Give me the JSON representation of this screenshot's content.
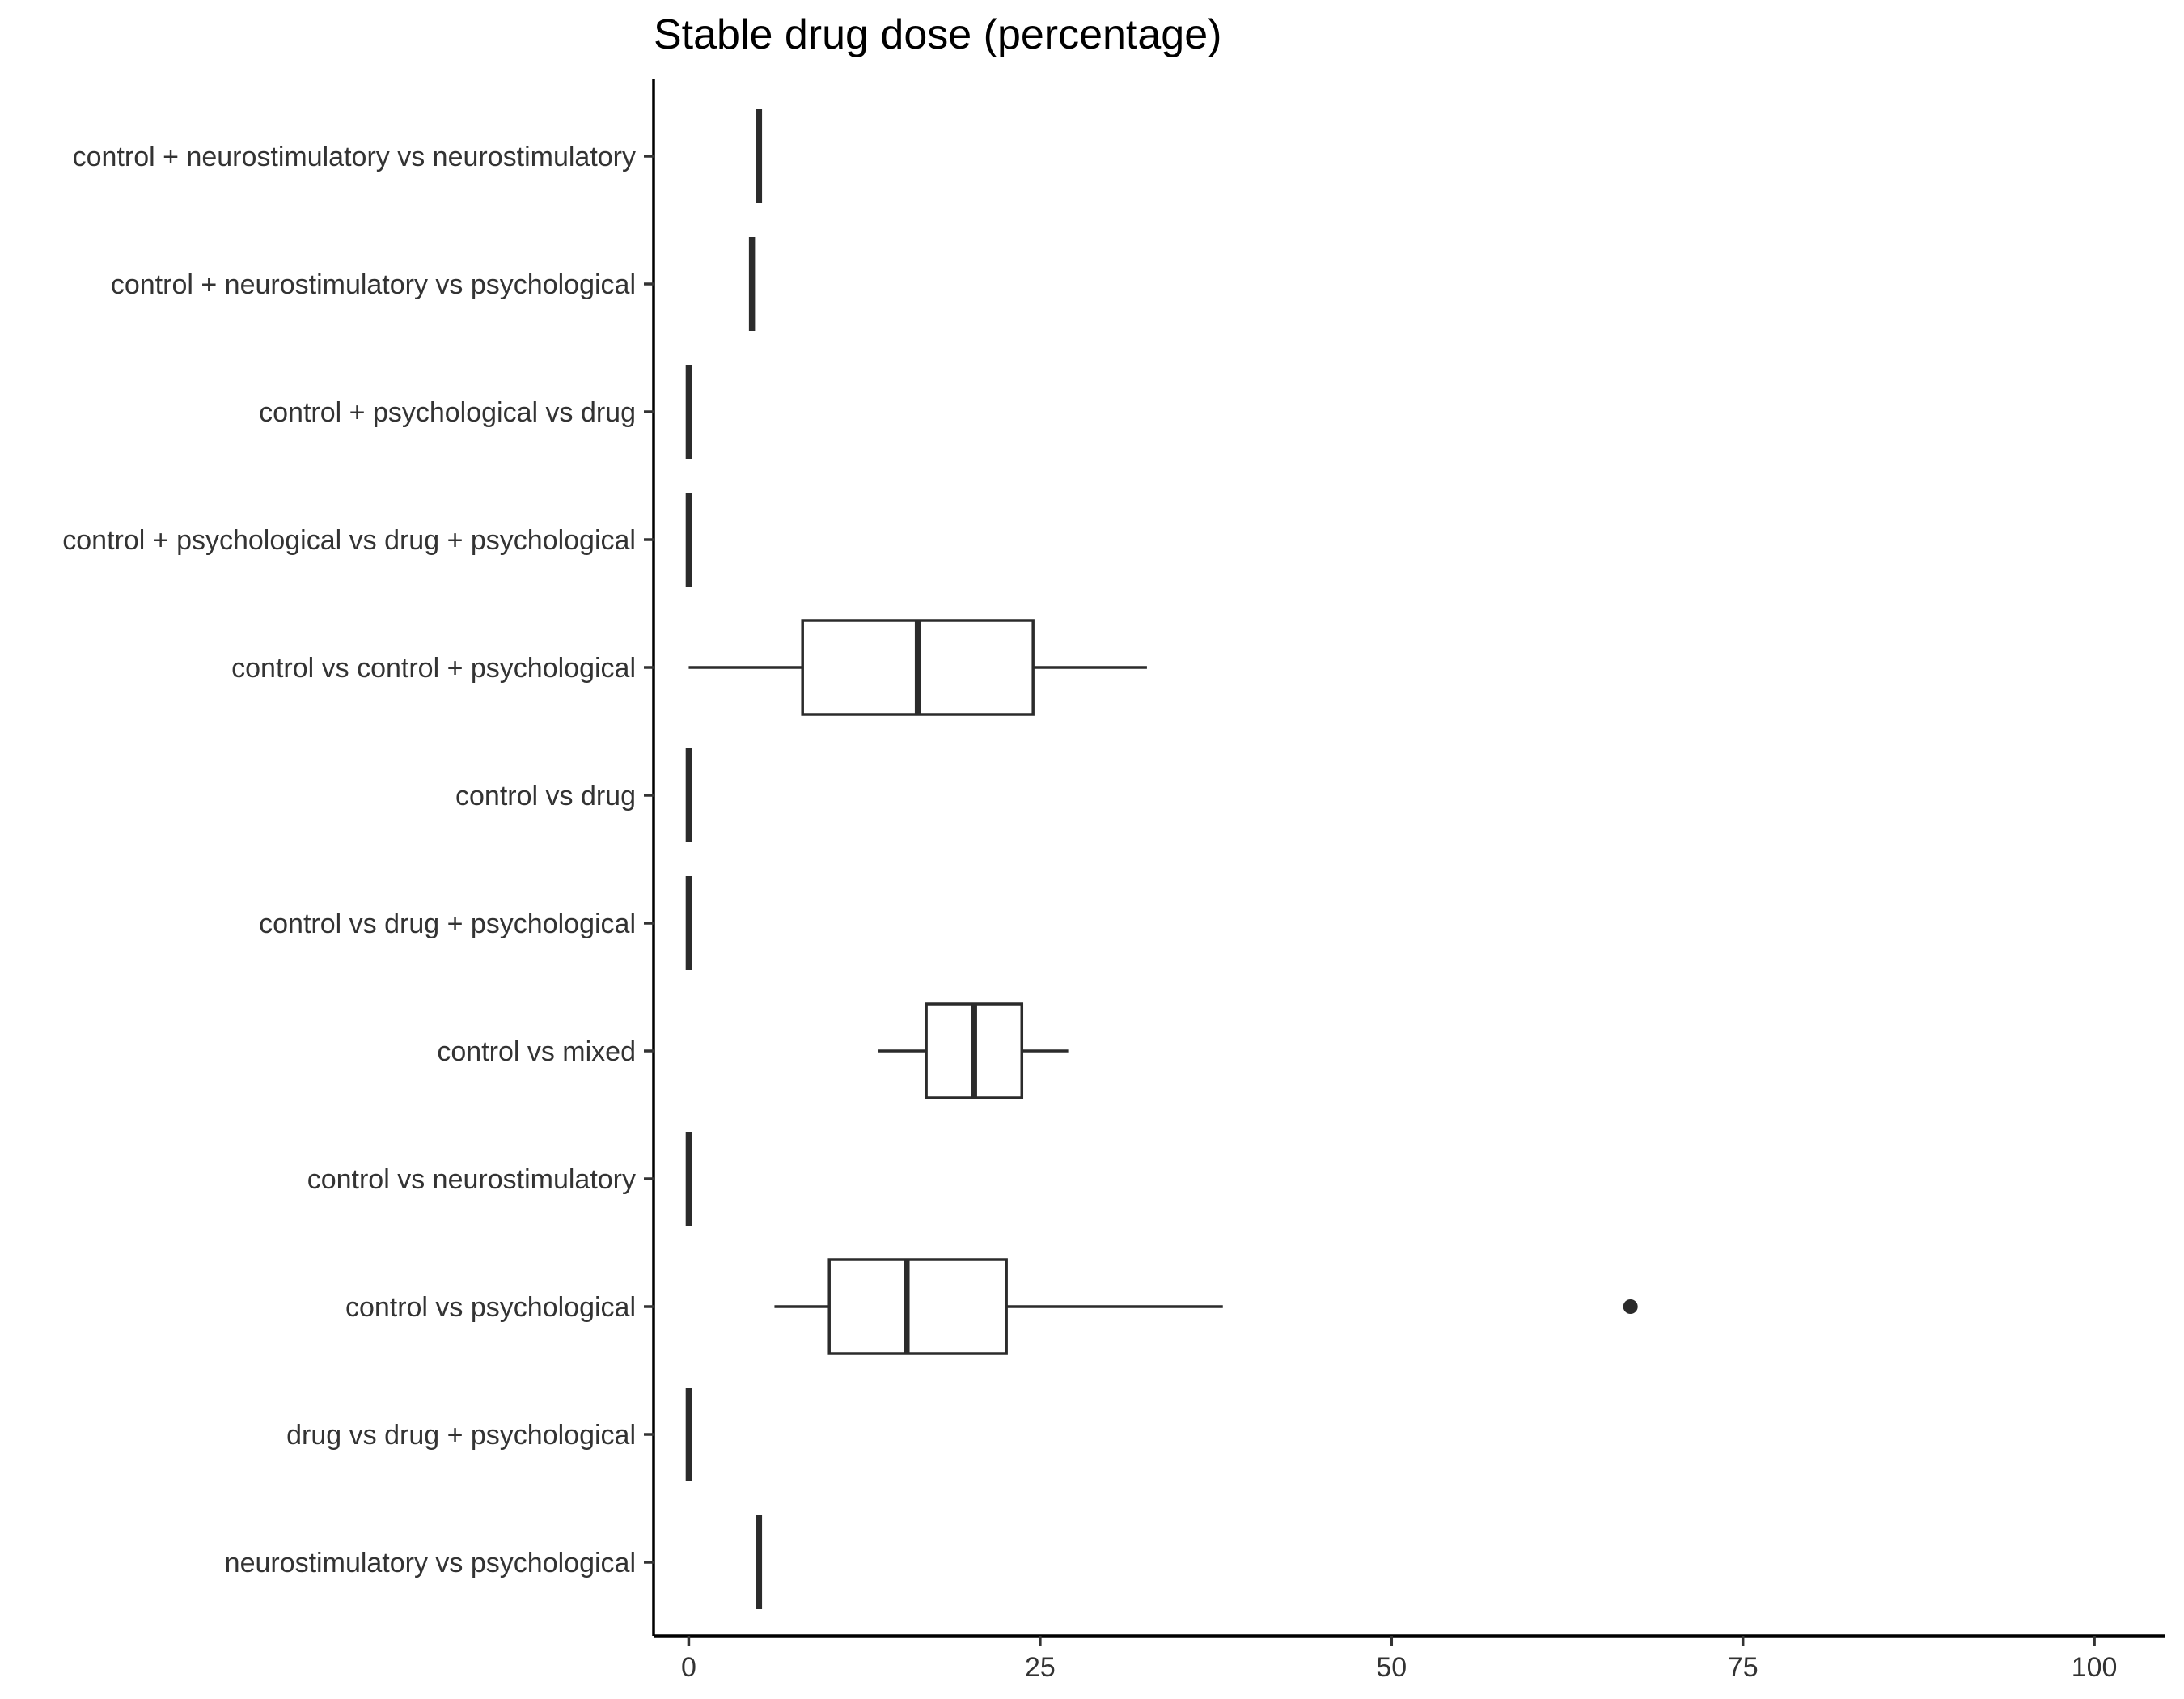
{
  "chart_data": {
    "type": "boxplot",
    "orientation": "horizontal",
    "title": "Stable drug dose (percentage)",
    "xlabel": "",
    "ylabel": "",
    "xlim": [
      -2.5,
      105
    ],
    "x_ticks": [
      0,
      25,
      50,
      75,
      100
    ],
    "x_tick_labels": [
      "0",
      "25",
      "50",
      "75",
      "100"
    ],
    "grid": false,
    "legend": "none",
    "colors": {
      "box_outline": "#2b2b2b",
      "box_fill": "#ffffff",
      "axis": "#000000",
      "text": "#333333"
    },
    "categories": [
      "control + neurostimulatory vs neurostimulatory",
      "control + neurostimulatory vs psychological",
      "control + psychological vs drug",
      "control + psychological vs drug + psychological",
      "control vs control + psychological",
      "control vs drug",
      "control vs drug + psychological",
      "control vs mixed",
      "control vs neurostimulatory",
      "control vs psychological",
      "drug vs drug + psychological",
      "neurostimulatory vs psychological"
    ],
    "boxes": [
      {
        "category": "control + neurostimulatory vs neurostimulatory",
        "min": 5.0,
        "q1": 5.0,
        "median": 5.0,
        "q3": 5.0,
        "max": 5.0,
        "outliers": []
      },
      {
        "category": "control + neurostimulatory vs psychological",
        "min": 4.5,
        "q1": 4.5,
        "median": 4.5,
        "q3": 4.5,
        "max": 4.5,
        "outliers": []
      },
      {
        "category": "control + psychological vs drug",
        "min": 0,
        "q1": 0,
        "median": 0,
        "q3": 0,
        "max": 0,
        "outliers": []
      },
      {
        "category": "control + psychological vs drug + psychological",
        "min": 0,
        "q1": 0,
        "median": 0,
        "q3": 0,
        "max": 0,
        "outliers": []
      },
      {
        "category": "control vs control + psychological",
        "min": 0,
        "q1": 8.1,
        "median": 16.3,
        "q3": 24.5,
        "max": 32.6,
        "outliers": []
      },
      {
        "category": "control vs drug",
        "min": 0,
        "q1": 0,
        "median": 0,
        "q3": 0,
        "max": 0,
        "outliers": []
      },
      {
        "category": "control vs drug + psychological",
        "min": 0,
        "q1": 0,
        "median": 0,
        "q3": 0,
        "max": 0,
        "outliers": []
      },
      {
        "category": "control vs mixed",
        "min": 13.5,
        "q1": 16.9,
        "median": 20.3,
        "q3": 23.7,
        "max": 27.0,
        "outliers": []
      },
      {
        "category": "control vs neurostimulatory",
        "min": 0,
        "q1": 0,
        "median": 0,
        "q3": 0,
        "max": 0,
        "outliers": []
      },
      {
        "category": "control vs psychological",
        "min": 6.1,
        "q1": 10.0,
        "median": 15.5,
        "q3": 22.6,
        "max": 38.0,
        "outliers": [
          67.0
        ]
      },
      {
        "category": "drug vs drug + psychological",
        "min": 0,
        "q1": 0,
        "median": 0,
        "q3": 0,
        "max": 0,
        "outliers": []
      },
      {
        "category": "neurostimulatory vs psychological",
        "min": 5.0,
        "q1": 5.0,
        "median": 5.0,
        "q3": 5.0,
        "max": 5.0,
        "outliers": []
      }
    ]
  }
}
